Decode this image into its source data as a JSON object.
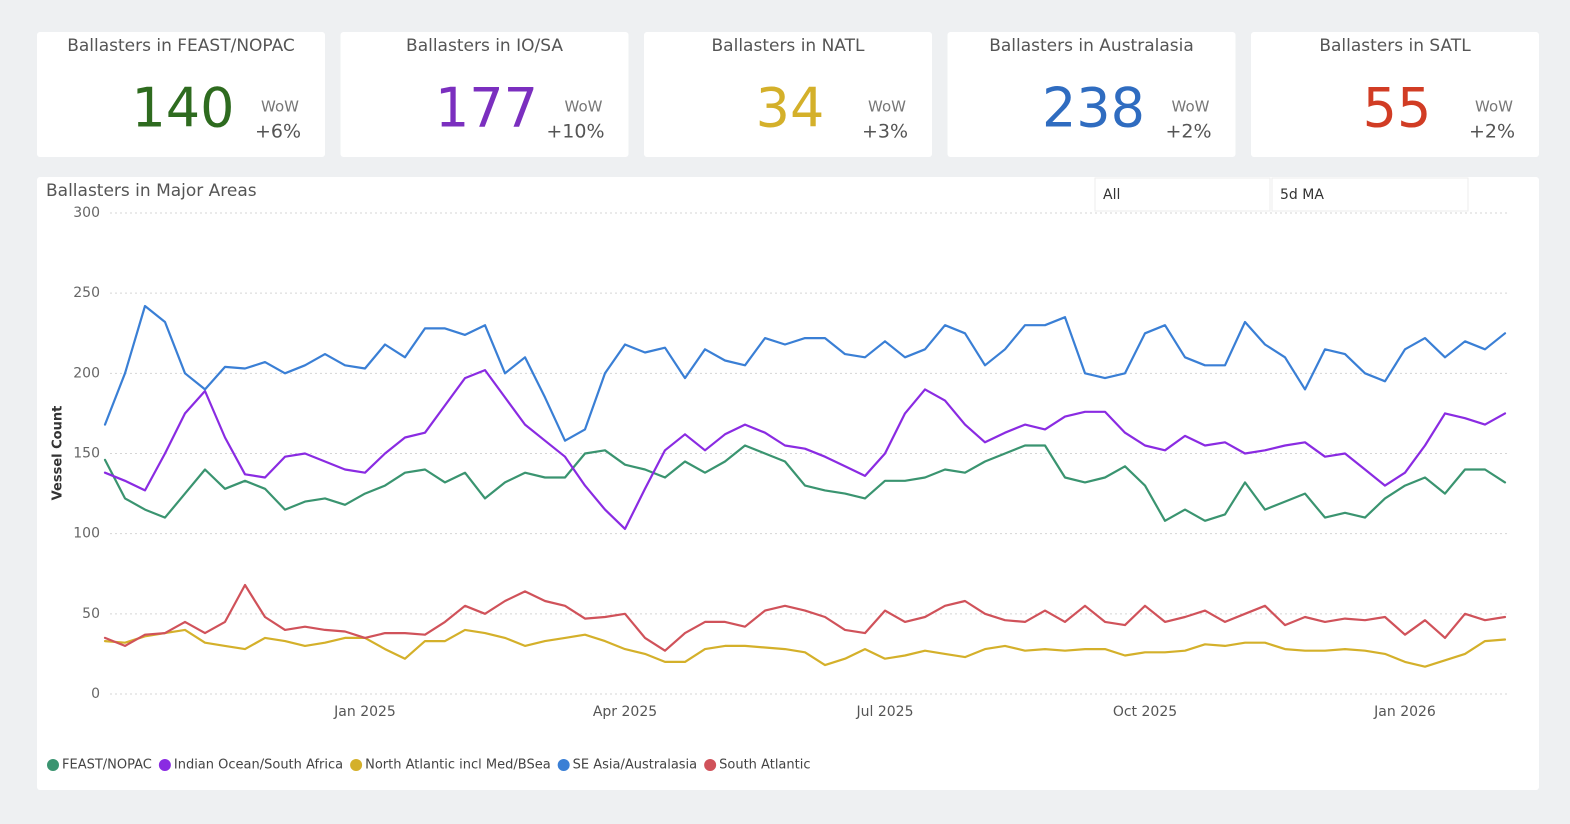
{
  "cards": [
    {
      "title": "Ballasters in FEAST/NOPAC",
      "value": 140,
      "wow_label": "WoW",
      "change": "+6%",
      "color": "#2e6b1f"
    },
    {
      "title": "Ballasters in IO/SA",
      "value": 177,
      "wow_label": "WoW",
      "change": "+10%",
      "color": "#7b2fbf"
    },
    {
      "title": "Ballasters in NATL",
      "value": 34,
      "wow_label": "WoW",
      "change": "+3%",
      "color": "#d4b02a"
    },
    {
      "title": "Ballasters in Australasia",
      "value": 238,
      "wow_label": "WoW",
      "change": "+2%",
      "color": "#2f6cc0"
    },
    {
      "title": "Ballasters in SATL",
      "value": 55,
      "wow_label": "WoW",
      "change": "+2%",
      "color": "#d13c24"
    }
  ],
  "slicers": [
    "All",
    "5d MA"
  ],
  "chart_data": {
    "type": "line",
    "title": "Ballasters in Major Areas",
    "y_label": "Vessel Count",
    "categories": [
      null,
      null,
      null,
      null,
      null,
      null,
      null,
      null,
      null,
      null,
      null,
      null,
      null,
      "Jan 2025",
      null,
      null,
      null,
      null,
      null,
      null,
      null,
      null,
      null,
      null,
      null,
      null,
      "Apr 2025",
      null,
      null,
      null,
      null,
      null,
      null,
      null,
      null,
      null,
      null,
      null,
      null,
      "Jul 2025",
      null,
      null,
      null,
      null,
      null,
      null,
      null,
      null,
      null,
      null,
      null,
      null,
      "Oct 2025",
      null,
      null,
      null,
      null,
      null,
      null,
      null,
      null,
      null,
      null,
      null,
      null,
      "Jan 2026",
      null,
      null,
      null,
      null,
      null
    ],
    "series": [
      {
        "name": "FEAST/NOPAC",
        "color": "#3a9470",
        "values": [
          146,
          122,
          115,
          110,
          125,
          140,
          128,
          133,
          128,
          115,
          120,
          122,
          118,
          125,
          130,
          138,
          140,
          132,
          138,
          122,
          132,
          138,
          135,
          135,
          150,
          152,
          143,
          140,
          135,
          145,
          138,
          145,
          155,
          150,
          145,
          130,
          127,
          125,
          122,
          133,
          133,
          135,
          140,
          138,
          145,
          150,
          155,
          155,
          135,
          132,
          135,
          142,
          130,
          108,
          115,
          108,
          112,
          132,
          115,
          120,
          125,
          110,
          113,
          110,
          122,
          130,
          135,
          125,
          140,
          140,
          132
        ]
      },
      {
        "name": "Indian Ocean/South Africa",
        "color": "#8a2be2",
        "values": [
          138,
          133,
          127,
          150,
          175,
          189,
          160,
          137,
          135,
          148,
          150,
          145,
          140,
          138,
          150,
          160,
          163,
          180,
          197,
          202,
          185,
          168,
          158,
          148,
          130,
          115,
          103,
          128,
          152,
          162,
          152,
          162,
          168,
          163,
          155,
          153,
          148,
          142,
          136,
          150,
          175,
          190,
          183,
          168,
          157,
          163,
          168,
          165,
          173,
          176,
          176,
          163,
          155,
          152,
          161,
          155,
          157,
          150,
          152,
          155,
          157,
          148,
          150,
          140,
          130,
          138,
          155,
          175,
          172,
          168,
          175
        ]
      },
      {
        "name": "North Atlantic incl Med/BSea",
        "color": "#d4b02a",
        "values": [
          33,
          32,
          36,
          38,
          40,
          32,
          30,
          28,
          35,
          33,
          30,
          32,
          35,
          35,
          28,
          22,
          33,
          33,
          40,
          38,
          35,
          30,
          33,
          35,
          37,
          33,
          28,
          25,
          20,
          20,
          28,
          30,
          30,
          29,
          28,
          26,
          18,
          22,
          28,
          22,
          24,
          27,
          25,
          23,
          28,
          30,
          27,
          28,
          27,
          28,
          28,
          24,
          26,
          26,
          27,
          31,
          30,
          32,
          32,
          28,
          27,
          27,
          28,
          27,
          25,
          20,
          17,
          21,
          25,
          33,
          34
        ]
      },
      {
        "name": "SE Asia/Australasia",
        "color": "#3a7fd5",
        "values": [
          168,
          200,
          242,
          232,
          200,
          190,
          204,
          203,
          207,
          200,
          205,
          212,
          205,
          203,
          218,
          210,
          228,
          228,
          224,
          230,
          200,
          210,
          185,
          158,
          165,
          200,
          218,
          213,
          216,
          197,
          215,
          208,
          205,
          222,
          218,
          222,
          222,
          212,
          210,
          220,
          210,
          215,
          230,
          225,
          205,
          215,
          230,
          230,
          235,
          200,
          197,
          200,
          225,
          230,
          210,
          205,
          205,
          232,
          218,
          210,
          190,
          215,
          212,
          200,
          195,
          215,
          222,
          210,
          220,
          215,
          225
        ]
      },
      {
        "name": "South Atlantic",
        "color": "#d0525a",
        "values": [
          35,
          30,
          37,
          38,
          45,
          38,
          45,
          68,
          48,
          40,
          42,
          40,
          39,
          35,
          38,
          38,
          37,
          45,
          55,
          50,
          58,
          64,
          58,
          55,
          47,
          48,
          50,
          35,
          27,
          38,
          45,
          45,
          42,
          52,
          55,
          52,
          48,
          40,
          38,
          52,
          45,
          48,
          55,
          58,
          50,
          46,
          45,
          52,
          45,
          55,
          45,
          43,
          55,
          45,
          48,
          52,
          45,
          50,
          55,
          43,
          48,
          45,
          47,
          46,
          48,
          37,
          46,
          35,
          50,
          46,
          48
        ]
      }
    ],
    "ylim": [
      0,
      300
    ],
    "yticks": [
      0,
      50,
      100,
      150,
      200,
      250,
      300
    ],
    "grid": true
  }
}
